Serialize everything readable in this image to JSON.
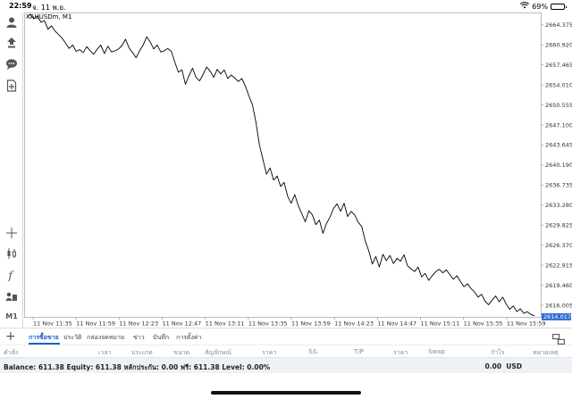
{
  "status_bar": {
    "time": "22:59",
    "date": "จ. 11 พ.ย.",
    "battery": "69%",
    "battery_level": 0.69
  },
  "toolbar": {
    "icons": [
      "accounts-icon",
      "trade-icon",
      "chat-icon",
      "new-document-icon",
      "crosshair-icon",
      "candles-icon",
      "function-icon",
      "objects-icon"
    ],
    "timeframe": "M1"
  },
  "chart": {
    "symbol_title": "XAUUSDm, M1",
    "current_price": "2614.017",
    "colors": {
      "line": "#000000",
      "price_tag": "#2f6bd6",
      "grid": "#e6e6e6"
    }
  },
  "chart_data": {
    "type": "line",
    "title": "XAUUSDm, M1",
    "x_ticks": [
      "11 Nov 11:35",
      "11 Nov 11:59",
      "11 Nov 12:23",
      "11 Nov 12:47",
      "11 Nov 13:11",
      "11 Nov 13:35",
      "11 Nov 13:59",
      "11 Nov 14:23",
      "11 Nov 14:47",
      "11 Nov 15:11",
      "11 Nov 15:35",
      "11 Nov 15:59"
    ],
    "y_ticks": [
      "2664.375",
      "2660.920",
      "2657.465",
      "2654.010",
      "2650.555",
      "2647.100",
      "2643.645",
      "2640.190",
      "2636.735",
      "2633.280",
      "2629.825",
      "2626.370",
      "2622.915",
      "2619.460",
      "2616.005"
    ],
    "ylim": [
      2614.0,
      2666.5
    ],
    "x": [
      0,
      2,
      4,
      6,
      8,
      10,
      12,
      14,
      16,
      18,
      20,
      22,
      24,
      26,
      28,
      30,
      32,
      34,
      36,
      38,
      40,
      42,
      44,
      46,
      48,
      50,
      52,
      54,
      56,
      58,
      60,
      62,
      64,
      66,
      68,
      70,
      72,
      74,
      76,
      78,
      80,
      82,
      84,
      86,
      88,
      90,
      92,
      94,
      96,
      98,
      100,
      102,
      104,
      106,
      108,
      110,
      112,
      114,
      116,
      118,
      120,
      122,
      124,
      126,
      128,
      130,
      132,
      134,
      136,
      138,
      140,
      142,
      144,
      146,
      148,
      150,
      152,
      154,
      156,
      158,
      160,
      162,
      164,
      166,
      168,
      170,
      172,
      174,
      176,
      178,
      180,
      182,
      184,
      186,
      188,
      190,
      192,
      194,
      196,
      198,
      200,
      202,
      204,
      206,
      208,
      210,
      212,
      214,
      216,
      218,
      220,
      222,
      224,
      226,
      228,
      230,
      232,
      234,
      236,
      238,
      240,
      242,
      244,
      246,
      248,
      250,
      252,
      254,
      256,
      258,
      260,
      262,
      264,
      266,
      268,
      270,
      272,
      274,
      276,
      278,
      280,
      282,
      284,
      286,
      288
    ],
    "y": [
      2665.6,
      2666.2,
      2665.4,
      2665.9,
      2664.8,
      2665.1,
      2663.6,
      2664.2,
      2663.3,
      2662.7,
      2662.1,
      2661.2,
      2660.3,
      2660.9,
      2659.8,
      2660.1,
      2659.6,
      2660.6,
      2659.9,
      2659.3,
      2660.2,
      2660.9,
      2659.4,
      2660.7,
      2659.7,
      2659.9,
      2660.2,
      2660.8,
      2661.9,
      2660.4,
      2659.6,
      2658.7,
      2659.9,
      2660.9,
      2662.3,
      2661.4,
      2660.2,
      2660.9,
      2659.7,
      2659.9,
      2660.3,
      2659.8,
      2657.9,
      2656.2,
      2656.6,
      2654.1,
      2655.6,
      2656.9,
      2655.3,
      2654.7,
      2655.8,
      2657.1,
      2656.4,
      2655.3,
      2656.7,
      2655.9,
      2656.6,
      2655.1,
      2655.7,
      2655.2,
      2654.6,
      2655.1,
      2653.8,
      2652.1,
      2650.6,
      2647.6,
      2643.6,
      2641.1,
      2638.6,
      2639.7,
      2637.6,
      2638.3,
      2636.5,
      2637.2,
      2634.8,
      2633.6,
      2635.1,
      2633.2,
      2631.8,
      2630.4,
      2632.3,
      2631.6,
      2629.9,
      2630.7,
      2628.4,
      2630.1,
      2631.2,
      2632.7,
      2633.5,
      2632.2,
      2633.6,
      2631.3,
      2632.2,
      2631.6,
      2630.3,
      2629.6,
      2627.1,
      2625.4,
      2623.1,
      2624.4,
      2622.6,
      2624.8,
      2623.7,
      2624.6,
      2623.2,
      2624.1,
      2623.6,
      2624.7,
      2622.8,
      2622.3,
      2621.8,
      2622.6,
      2620.9,
      2621.5,
      2620.3,
      2621.1,
      2621.8,
      2622.2,
      2621.6,
      2622.1,
      2621.3,
      2620.5,
      2621.1,
      2620.1,
      2619.2,
      2619.7,
      2618.9,
      2618.3,
      2617.4,
      2617.9,
      2616.7,
      2616.1,
      2616.9,
      2617.6,
      2616.6,
      2617.4,
      2616.2,
      2615.3,
      2615.9,
      2614.9,
      2615.4,
      2614.6,
      2614.9,
      2614.4,
      2614.2
    ]
  },
  "bottom_tabs": {
    "add_label": "+",
    "tabs": [
      "การซื้อขาย",
      "ประวัติ",
      "กล่องจดหมาย",
      "ข่าว",
      "บันทึก",
      "การตั้งค่า"
    ],
    "active_index": 0
  },
  "columns": [
    "คำสั่ง",
    "เวลา",
    "ประเภท",
    "ขนาด",
    "สัญลักษณ์",
    "ราคา",
    "S/L",
    "T/P",
    "ราคา",
    "Swap",
    "กำไร",
    "หมายเหตุ"
  ],
  "balance": {
    "summary": "Balance: 611.38 Equity: 611.38 หลักประกัน: 0.00 ฟรี: 611.38 Level: 0.00%",
    "profit": "0.00",
    "currency": "USD"
  }
}
